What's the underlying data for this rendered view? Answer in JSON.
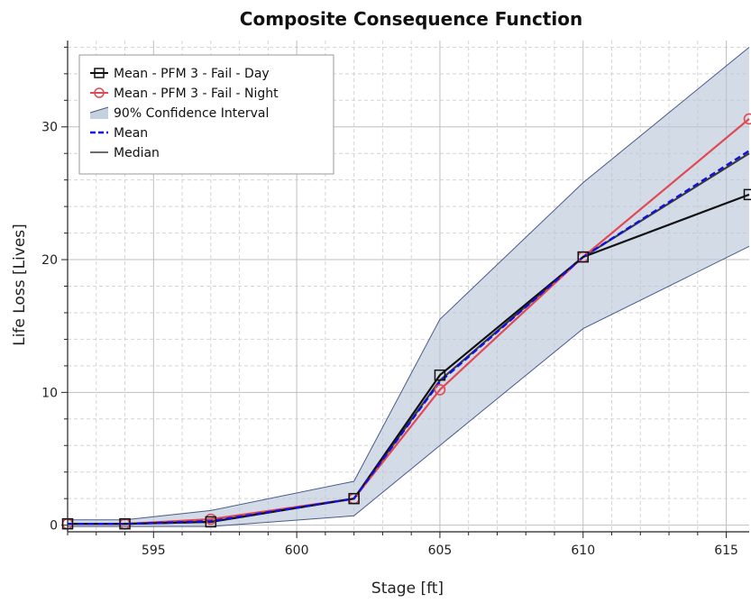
{
  "chart_data": {
    "type": "line",
    "title": "Composite Consequence Function",
    "xlabel": "Stage [ft]",
    "ylabel": "Life Loss [Lives]",
    "xlim": [
      592,
      615.8
    ],
    "ylim": [
      -0.5,
      36.5
    ],
    "x_ticks": [
      595,
      600,
      605,
      610,
      615
    ],
    "y_ticks": [
      0,
      10,
      20,
      30
    ],
    "x_minor_step": 1,
    "y_minor_step": 2,
    "grid": true,
    "legend_position": "top-left",
    "series": [
      {
        "name": "Mean - PFM 3 - Fail - Day",
        "style": "solid",
        "marker": "square",
        "color": "#111111",
        "x": [
          592,
          594,
          597,
          602,
          605,
          610,
          615.8
        ],
        "y": [
          0.1,
          0.1,
          0.25,
          2.0,
          11.3,
          20.2,
          24.9
        ]
      },
      {
        "name": "Mean - PFM 3 - Fail - Night",
        "style": "solid",
        "marker": "circle",
        "color": "#e04a55",
        "x": [
          592,
          594,
          597,
          602,
          605,
          610,
          615.8
        ],
        "y": [
          0.1,
          0.1,
          0.45,
          2.0,
          10.2,
          20.2,
          30.6
        ]
      },
      {
        "name": "90% Confidence Interval",
        "style": "band",
        "color": "#b8c5d8",
        "edge_color": "#4a5a8a",
        "x": [
          592,
          594,
          597,
          602,
          605,
          610,
          615.8
        ],
        "upper": [
          0.4,
          0.4,
          1.1,
          3.3,
          15.5,
          25.8,
          36.0
        ],
        "lower": [
          -0.1,
          -0.1,
          -0.1,
          0.7,
          6.0,
          14.8,
          21.0
        ]
      },
      {
        "name": "Mean",
        "style": "dashed",
        "color": "#1010e0",
        "x": [
          592,
          594,
          597,
          602,
          605,
          610,
          615.8
        ],
        "y": [
          0.1,
          0.1,
          0.3,
          2.0,
          10.8,
          20.2,
          28.2
        ]
      },
      {
        "name": "Median",
        "style": "solid",
        "color": "#3a3a3a",
        "x": [
          592,
          594,
          597,
          602,
          605,
          610,
          615.8
        ],
        "y": [
          0.1,
          0.1,
          0.25,
          2.0,
          10.9,
          20.2,
          28.0
        ]
      }
    ]
  }
}
